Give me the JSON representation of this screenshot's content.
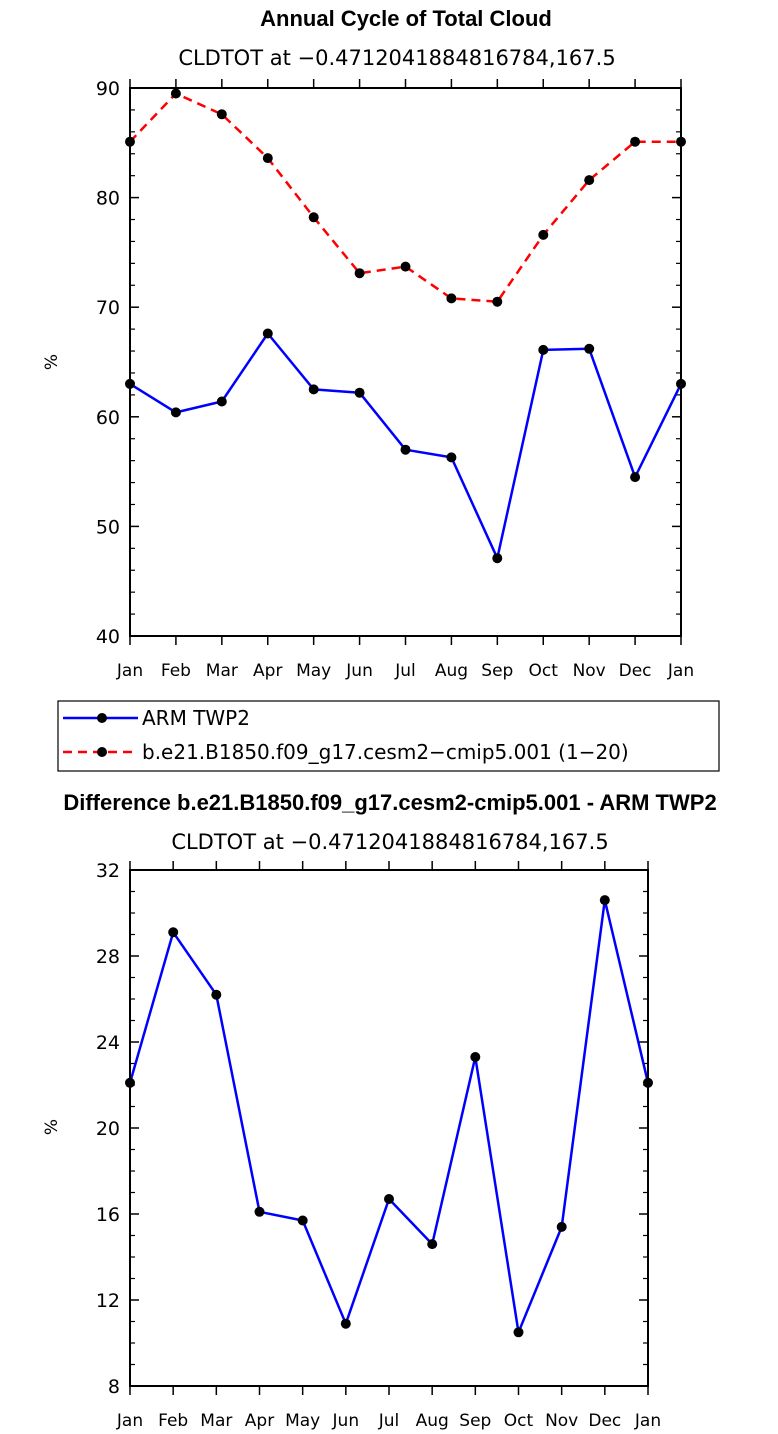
{
  "chart_data": [
    {
      "type": "line",
      "title": "Annual Cycle of Total Cloud",
      "subtitle": "CLDTOT at −0.4712041884816784,167.5",
      "ylabel": "%",
      "ylim": [
        40,
        90
      ],
      "yticks": [
        "40",
        "50",
        "60",
        "70",
        "80",
        "90"
      ],
      "categories": [
        "Jan",
        "Feb",
        "Mar",
        "Apr",
        "May",
        "Jun",
        "Jul",
        "Aug",
        "Sep",
        "Oct",
        "Nov",
        "Dec",
        "Jan"
      ],
      "series": [
        {
          "name": "ARM TWP2",
          "color": "#0000ff",
          "dash": "solid",
          "values": [
            63.0,
            60.4,
            61.4,
            67.6,
            62.5,
            62.2,
            57.0,
            56.3,
            47.1,
            66.1,
            66.2,
            54.5,
            63.0
          ]
        },
        {
          "name": "b.e21.B1850.f09_g17.cesm2−cmip5.001 (1−20)",
          "color": "#ff0000",
          "dash": "dashed",
          "values": [
            85.1,
            89.5,
            87.6,
            83.6,
            78.2,
            73.1,
            73.7,
            70.8,
            70.5,
            76.6,
            81.6,
            85.1,
            85.1
          ]
        }
      ],
      "legend": "below"
    },
    {
      "type": "line",
      "title": "Difference b.e21.B1850.f09_g17.cesm2-cmip5.001 - ARM TWP2",
      "subtitle": "CLDTOT at −0.4712041884816784,167.5",
      "ylabel": "%",
      "ylim": [
        8,
        32
      ],
      "yticks": [
        "8",
        "12",
        "16",
        "20",
        "24",
        "28",
        "32"
      ],
      "categories": [
        "Jan",
        "Feb",
        "Mar",
        "Apr",
        "May",
        "Jun",
        "Jul",
        "Aug",
        "Sep",
        "Oct",
        "Nov",
        "Dec",
        "Jan"
      ],
      "series": [
        {
          "color": "#0000ff",
          "dash": "solid",
          "values": [
            22.1,
            29.1,
            26.2,
            16.1,
            15.7,
            10.9,
            16.7,
            14.6,
            23.3,
            10.5,
            15.4,
            30.6,
            22.1
          ]
        }
      ]
    }
  ]
}
